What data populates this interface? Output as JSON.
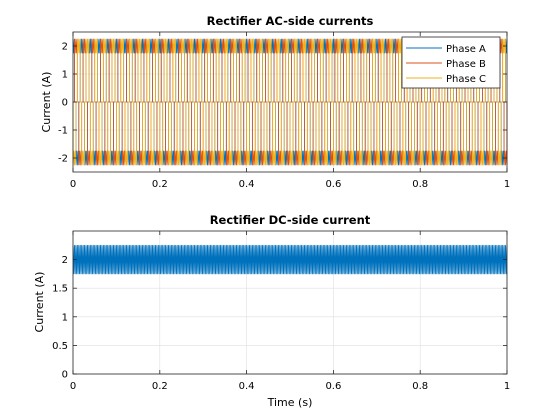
{
  "figure": {
    "background": "#ffffff"
  },
  "chart_data": [
    {
      "type": "line",
      "title": "Rectifier AC-side currents",
      "xlabel": "",
      "ylabel": "Current (A)",
      "xlim": [
        0,
        1
      ],
      "ylim": [
        -2.5,
        2.5
      ],
      "xticks": [
        0,
        0.2,
        0.4,
        0.6,
        0.8,
        1
      ],
      "xtick_labels": [
        "0",
        "0.2",
        "0.4",
        "0.6",
        "0.8",
        "1"
      ],
      "yticks": [
        -2,
        -1,
        0,
        1,
        2
      ],
      "ytick_labels": [
        "-2",
        "-1",
        "0",
        "1",
        "2"
      ],
      "grid": true,
      "legend": "top-right",
      "waveform": {
        "fundamental_hz": 50,
        "amplitude": 2.0,
        "ripple_amplitude": 0.25,
        "ripple_harmonic": 6,
        "conduction_deg": 120
      },
      "series": [
        {
          "name": "Phase A",
          "color": "#0072BD",
          "phase_deg": 0
        },
        {
          "name": "Phase B",
          "color": "#D95319",
          "phase_deg": -120
        },
        {
          "name": "Phase C",
          "color": "#EDB120",
          "phase_deg": 120
        }
      ]
    },
    {
      "type": "line",
      "title": "Rectifier DC-side current",
      "xlabel": "Time (s)",
      "ylabel": "Current (A)",
      "xlim": [
        0,
        1
      ],
      "ylim": [
        0,
        2.5
      ],
      "xticks": [
        0,
        0.2,
        0.4,
        0.6,
        0.8,
        1
      ],
      "xtick_labels": [
        "0",
        "0.2",
        "0.4",
        "0.6",
        "0.8",
        "1"
      ],
      "yticks": [
        0,
        0.5,
        1,
        1.5,
        2
      ],
      "ytick_labels": [
        "0",
        "0.5",
        "1",
        "1.5",
        "2"
      ],
      "grid": true,
      "waveform": {
        "fundamental_hz": 50,
        "dc_mean": 2.0,
        "ripple_amplitude": 0.25,
        "ripple_harmonic": 6
      },
      "series": [
        {
          "name": "",
          "color": "#0072BD"
        }
      ]
    }
  ]
}
